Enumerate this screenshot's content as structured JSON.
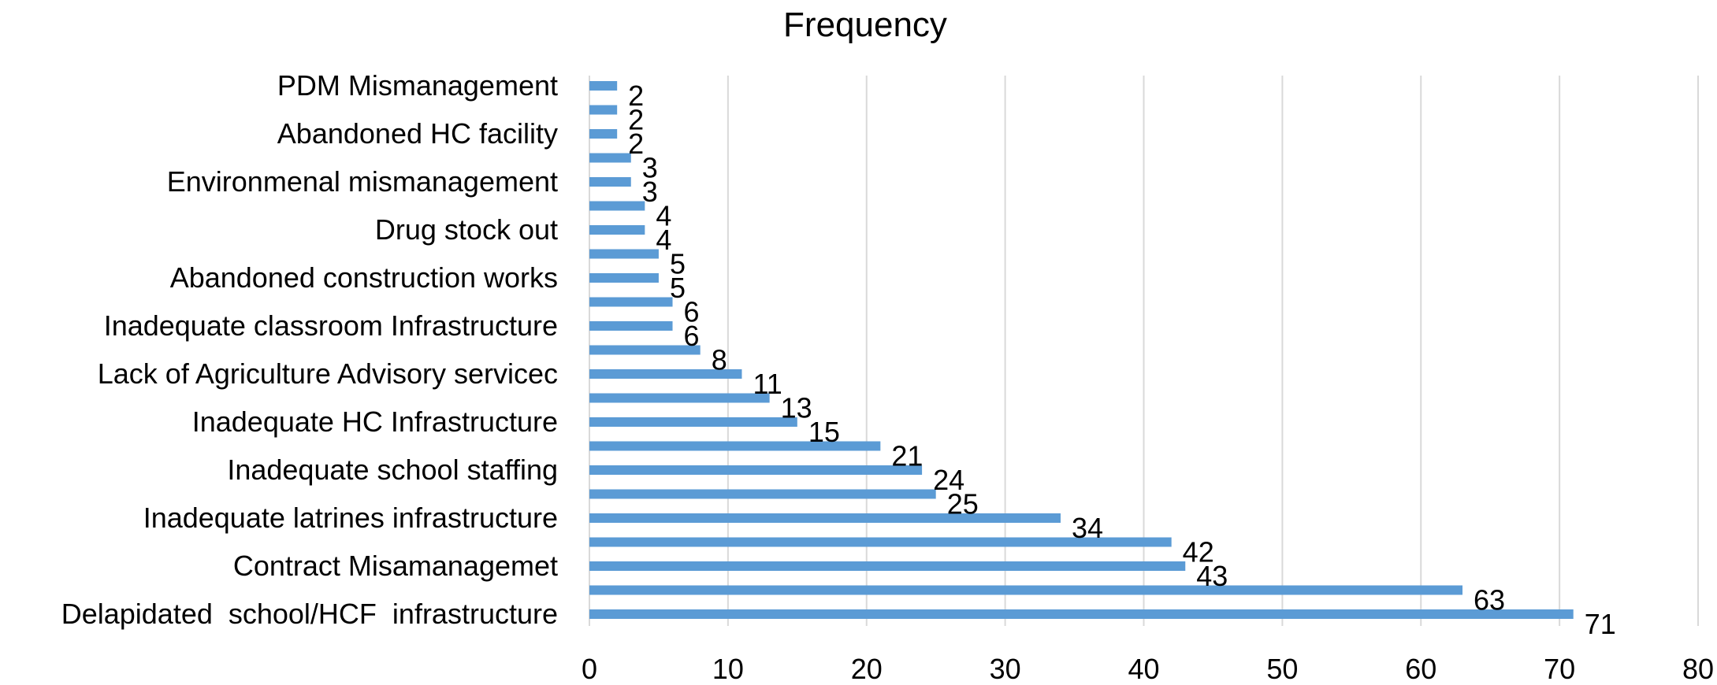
{
  "chart_data": {
    "type": "bar",
    "orientation": "horizontal",
    "title": "Frequency",
    "xlabel": "",
    "ylabel": "",
    "xlim": [
      0,
      80
    ],
    "x_ticks": [
      0,
      10,
      20,
      30,
      40,
      50,
      60,
      70,
      80
    ],
    "grid": "vertical",
    "bar_color": "#5b9bd5",
    "grid_color": "#d9d9d9",
    "categories": [
      "Delapidated  school/HCF  infrastructure",
      "",
      "Contract Misamanagemet",
      "",
      "Inadequate latrines infrastructure",
      "",
      "Inadequate school staffing",
      "",
      "Inadequate HC Infrastructure",
      "",
      "Lack of Agriculture Advisory servicec",
      "",
      "Inadequate classroom Infrastructure",
      "",
      "Abandoned construction works",
      "",
      "Drug stock out",
      "",
      "Environmenal mismanagement",
      "",
      "Abandoned HC facility",
      "",
      "PDM Mismanagement"
    ],
    "values": [
      71,
      63,
      43,
      42,
      34,
      25,
      24,
      21,
      15,
      13,
      11,
      8,
      6,
      6,
      5,
      5,
      4,
      4,
      3,
      3,
      2,
      2,
      2
    ]
  }
}
